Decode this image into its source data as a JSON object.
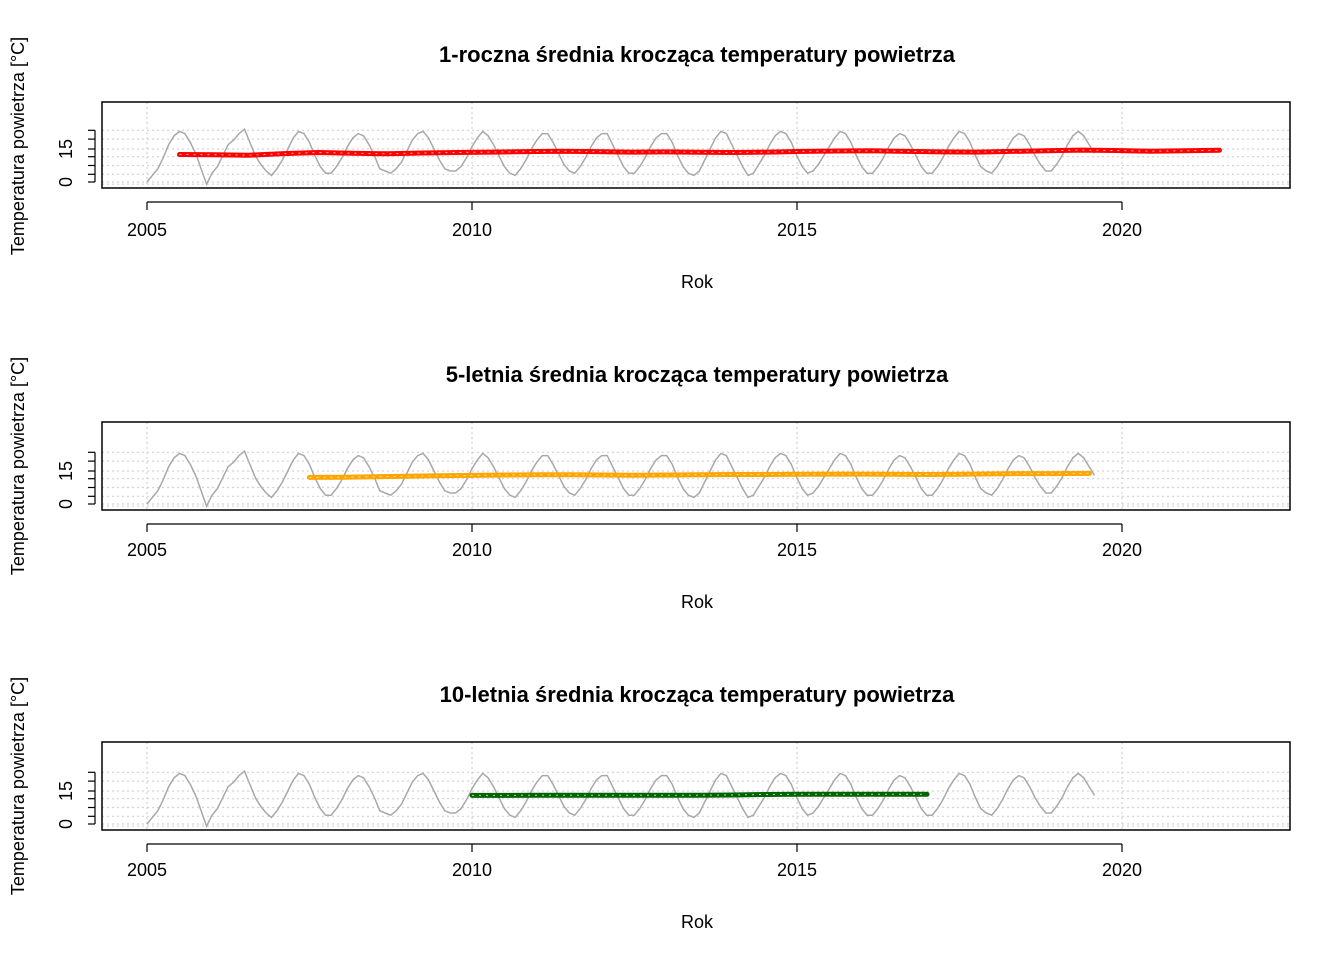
{
  "chart_data": [
    {
      "type": "line",
      "title": "1-roczna średnia krocząca temperatury powietrza",
      "xlabel": "Rok",
      "ylabel": "Temperatura powietrza [°C]",
      "x_ticks": [
        "2005",
        "2010",
        "2015",
        "2020"
      ],
      "y_ticks": [
        "0",
        "15"
      ],
      "xlim": [
        2004.3,
        2022.6
      ],
      "ylim": [
        -2,
        24
      ],
      "grid": true,
      "raw_series": {
        "color": "#a8a8a8",
        "x_start": 2005.0,
        "x_step": 0.0833,
        "values": [
          0,
          3,
          6,
          11,
          17,
          21,
          23,
          22,
          18,
          13,
          6,
          -1,
          4,
          7,
          12,
          17,
          19,
          22,
          24,
          18,
          12,
          8,
          5,
          3,
          6,
          10,
          15,
          20,
          23,
          22,
          18,
          12,
          7,
          4,
          4,
          7,
          11,
          16,
          20,
          22,
          21,
          17,
          12,
          6,
          5,
          4,
          6,
          9,
          14,
          19,
          22,
          23,
          20,
          15,
          10,
          6,
          5,
          5,
          7,
          11,
          16,
          20,
          23,
          21,
          17,
          12,
          7,
          4,
          3,
          6,
          10,
          15,
          19,
          22,
          22,
          18,
          13,
          8,
          5,
          4,
          7,
          11,
          16,
          20,
          22,
          22,
          17,
          12,
          7,
          4,
          4,
          7,
          11,
          16,
          20,
          22,
          22,
          18,
          12,
          7,
          4,
          3,
          5,
          10,
          15,
          20,
          23,
          22,
          17,
          12,
          7,
          3,
          4,
          8,
          12,
          17,
          21,
          23,
          22,
          18,
          12,
          7,
          4,
          5,
          8,
          12,
          16,
          20,
          23,
          22,
          18,
          12,
          7,
          4,
          4,
          7,
          11,
          16,
          20,
          22,
          21,
          17,
          12,
          7,
          4,
          4,
          7,
          11,
          16,
          20,
          23,
          22,
          18,
          12,
          7,
          5,
          4,
          7,
          11,
          16,
          20,
          22,
          21,
          17,
          12,
          8,
          5,
          5,
          8,
          12,
          17,
          21,
          23,
          21,
          17,
          13
        ]
      },
      "series": [
        {
          "name": "1-roczna średnia",
          "color": "#ff0000",
          "x_start": 2005.5,
          "x_end": 2021.5,
          "values": [
            12.5,
            12.4,
            12.2,
            12.9,
            13.4,
            13.1,
            12.8,
            13.2,
            13.4,
            13.6,
            13.8,
            14.0,
            13.8,
            13.6,
            13.7,
            13.5,
            13.4,
            13.6,
            13.9,
            14.1,
            14.2,
            13.9,
            13.7,
            13.6,
            13.9,
            14.2,
            14.5,
            14.3,
            14.0,
            14.2,
            14.4
          ]
        }
      ]
    },
    {
      "type": "line",
      "title": "5-letnia średnia krocząca temperatury powietrza",
      "xlabel": "Rok",
      "ylabel": "Temperatura powietrza [°C]",
      "x_ticks": [
        "2005",
        "2010",
        "2015",
        "2020"
      ],
      "y_ticks": [
        "0",
        "15"
      ],
      "xlim": [
        2004.3,
        2022.6
      ],
      "ylim": [
        -2,
        24
      ],
      "grid": true,
      "raw_series": {
        "color": "#a8a8a8",
        "x_start": 2005.0,
        "x_step": 0.0833,
        "values": [
          0,
          3,
          6,
          11,
          17,
          21,
          23,
          22,
          18,
          13,
          6,
          -1,
          4,
          7,
          12,
          17,
          19,
          22,
          24,
          18,
          12,
          8,
          5,
          3,
          6,
          10,
          15,
          20,
          23,
          22,
          18,
          12,
          7,
          4,
          4,
          7,
          11,
          16,
          20,
          22,
          21,
          17,
          12,
          6,
          5,
          4,
          6,
          9,
          14,
          19,
          22,
          23,
          20,
          15,
          10,
          6,
          5,
          5,
          7,
          11,
          16,
          20,
          23,
          21,
          17,
          12,
          7,
          4,
          3,
          6,
          10,
          15,
          19,
          22,
          22,
          18,
          13,
          8,
          5,
          4,
          7,
          11,
          16,
          20,
          22,
          22,
          17,
          12,
          7,
          4,
          4,
          7,
          11,
          16,
          20,
          22,
          22,
          18,
          12,
          7,
          4,
          3,
          5,
          10,
          15,
          20,
          23,
          22,
          17,
          12,
          7,
          3,
          4,
          8,
          12,
          17,
          21,
          23,
          22,
          18,
          12,
          7,
          4,
          5,
          8,
          12,
          16,
          20,
          23,
          22,
          18,
          12,
          7,
          4,
          4,
          7,
          11,
          16,
          20,
          22,
          21,
          17,
          12,
          7,
          4,
          4,
          7,
          11,
          16,
          20,
          23,
          22,
          18,
          12,
          7,
          5,
          4,
          7,
          11,
          16,
          20,
          22,
          21,
          17,
          12,
          8,
          5,
          5,
          8,
          12,
          17,
          21,
          23,
          21,
          17,
          13
        ]
      },
      "series": [
        {
          "name": "5-letnia średnia",
          "color": "#ffa500",
          "x_start": 2007.5,
          "x_end": 2019.5,
          "values": [
            12.1,
            12.2,
            12.4,
            12.6,
            12.8,
            13.0,
            13.2,
            13.3,
            13.3,
            13.2,
            13.1,
            13.2,
            13.3,
            13.4,
            13.4,
            13.5,
            13.6,
            13.6,
            13.5,
            13.4,
            13.5,
            13.7,
            13.8,
            13.8,
            13.9
          ]
        }
      ]
    },
    {
      "type": "line",
      "title": "10-letnia średnia krocząca temperatury powietrza",
      "xlabel": "Rok",
      "ylabel": "Temperatura powietrza [°C]",
      "x_ticks": [
        "2005",
        "2010",
        "2015",
        "2020"
      ],
      "y_ticks": [
        "0",
        "15"
      ],
      "xlim": [
        2004.3,
        2022.6
      ],
      "ylim": [
        -2,
        24
      ],
      "grid": true,
      "raw_series": {
        "color": "#a8a8a8",
        "x_start": 2005.0,
        "x_step": 0.0833,
        "values": [
          0,
          3,
          6,
          11,
          17,
          21,
          23,
          22,
          18,
          13,
          6,
          -1,
          4,
          7,
          12,
          17,
          19,
          22,
          24,
          18,
          12,
          8,
          5,
          3,
          6,
          10,
          15,
          20,
          23,
          22,
          18,
          12,
          7,
          4,
          4,
          7,
          11,
          16,
          20,
          22,
          21,
          17,
          12,
          6,
          5,
          4,
          6,
          9,
          14,
          19,
          22,
          23,
          20,
          15,
          10,
          6,
          5,
          5,
          7,
          11,
          16,
          20,
          23,
          21,
          17,
          12,
          7,
          4,
          3,
          6,
          10,
          15,
          19,
          22,
          22,
          18,
          13,
          8,
          5,
          4,
          7,
          11,
          16,
          20,
          22,
          22,
          17,
          12,
          7,
          4,
          4,
          7,
          11,
          16,
          20,
          22,
          22,
          18,
          12,
          7,
          4,
          3,
          5,
          10,
          15,
          20,
          23,
          22,
          17,
          12,
          7,
          3,
          4,
          8,
          12,
          17,
          21,
          23,
          22,
          18,
          12,
          7,
          4,
          5,
          8,
          12,
          16,
          20,
          23,
          22,
          18,
          12,
          7,
          4,
          4,
          7,
          11,
          16,
          20,
          22,
          21,
          17,
          12,
          7,
          4,
          4,
          7,
          11,
          16,
          20,
          23,
          22,
          18,
          12,
          7,
          5,
          4,
          7,
          11,
          16,
          20,
          22,
          21,
          17,
          12,
          8,
          5,
          5,
          8,
          12,
          17,
          21,
          23,
          21,
          17,
          13
        ]
      },
      "series": [
        {
          "name": "10-letnia średnia",
          "color": "#006400",
          "x_start": 2010.0,
          "x_end": 2017.0,
          "values": [
            13.0,
            13.0,
            13.1,
            13.1,
            13.1,
            13.1,
            13.1,
            13.1,
            13.2,
            13.4,
            13.5,
            13.5,
            13.5,
            13.5,
            13.5
          ]
        }
      ]
    }
  ]
}
